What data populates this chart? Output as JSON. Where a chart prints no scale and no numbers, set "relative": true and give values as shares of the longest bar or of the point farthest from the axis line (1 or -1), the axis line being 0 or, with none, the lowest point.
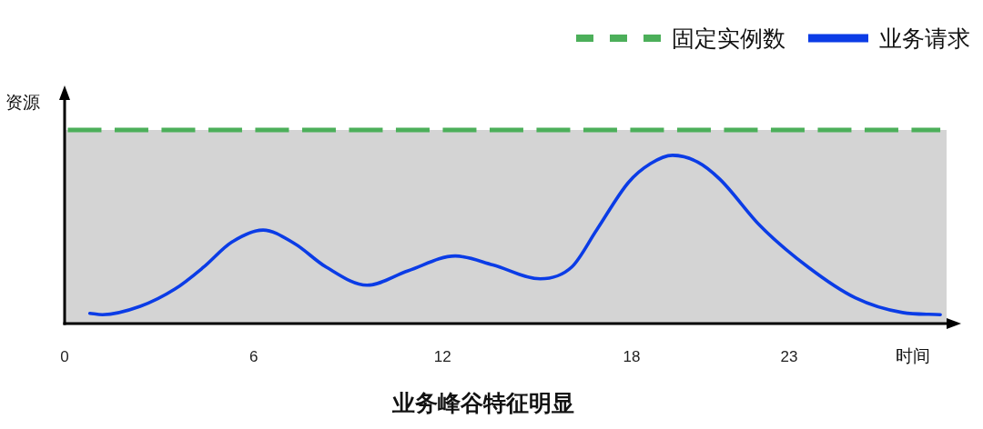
{
  "chart_data": {
    "type": "line",
    "title": "业务峰谷特征明显",
    "xlabel": "时间",
    "ylabel": "资源",
    "relative": true,
    "xlim": [
      0,
      28
    ],
    "xticks": [
      0,
      6,
      12,
      18,
      23
    ],
    "legend": "top right",
    "bands": [
      {
        "axis": "y",
        "from": 0,
        "to": 1,
        "color": "#d4d4d4"
      }
    ],
    "series": [
      {
        "name": "固定实例数",
        "color": "#4caf5a",
        "line_style": "dashed",
        "x": [
          0.1,
          27.8
        ],
        "values": [
          1,
          1
        ]
      },
      {
        "name": "业务请求",
        "color": "#0b3ce6",
        "line_style": "solid",
        "x": [
          0.8,
          1.2,
          2.4,
          3.5,
          4.4,
          5.3,
          6.3,
          7.3,
          8.3,
          9.6,
          10.9,
          12.4,
          13.6,
          15.1,
          16.1,
          16.9,
          17.9,
          18.6,
          19.3,
          20.1,
          20.8,
          22.1,
          23.6,
          25.1,
          26.6,
          27.8
        ],
        "values": [
          0.053,
          0.046,
          0.089,
          0.178,
          0.29,
          0.42,
          0.483,
          0.413,
          0.292,
          0.198,
          0.272,
          0.349,
          0.303,
          0.231,
          0.292,
          0.486,
          0.729,
          0.826,
          0.869,
          0.834,
          0.746,
          0.502,
          0.292,
          0.133,
          0.057,
          0.046
        ]
      }
    ]
  }
}
